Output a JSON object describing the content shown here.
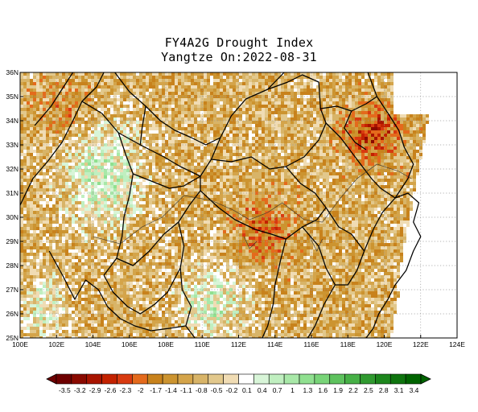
{
  "title": {
    "line1": "FY4A2G Drought Index",
    "line2": "Yangtze On:2022-08-31"
  },
  "map": {
    "lon_range": [
      100,
      124
    ],
    "lat_range": [
      25,
      36
    ],
    "lon_ticks": [
      "100E",
      "102E",
      "104E",
      "106E",
      "108E",
      "110E",
      "112E",
      "114E",
      "116E",
      "118E",
      "120E",
      "122E",
      "124E"
    ],
    "lat_ticks": [
      "25N",
      "26N",
      "27N",
      "28N",
      "29N",
      "30N",
      "31N",
      "32N",
      "33N",
      "34N",
      "35N",
      "36N"
    ],
    "grid": true
  },
  "colorbar": {
    "labels": [
      "-3.5",
      "-3.2",
      "-2.9",
      "-2.6",
      "-2.3",
      "-2",
      "-1.7",
      "-1.4",
      "-1.1",
      "-0.8",
      "-0.5",
      "-0.2",
      "0.1",
      "0.4",
      "0.7",
      "1",
      "1.3",
      "1.6",
      "1.9",
      "2.2",
      "2.5",
      "2.8",
      "3.1",
      "3.4"
    ],
    "colors": [
      "#6e0000",
      "#8a0a00",
      "#a81400",
      "#c32200",
      "#d83a10",
      "#e46a1c",
      "#c8821c",
      "#cc9430",
      "#d4a44a",
      "#d8b468",
      "#e2c88c",
      "#f0dcb4",
      "#ffffff",
      "#d8f5d8",
      "#c0efc0",
      "#a8e8a8",
      "#90e090",
      "#78d478",
      "#5ec25e",
      "#46b046",
      "#309a30",
      "#1c861c",
      "#0e740e",
      "#006400"
    ]
  }
}
